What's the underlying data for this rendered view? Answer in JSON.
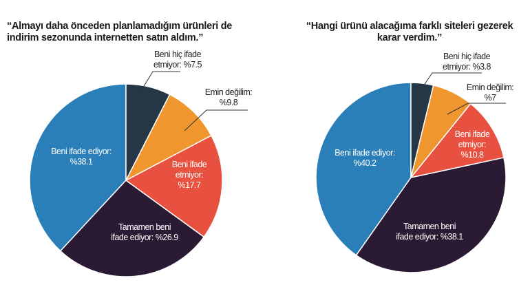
{
  "chart_data": [
    {
      "type": "pie",
      "title": "“Almayı daha önceden planlamadığım ürünleri de indirim sezonunda internetten satın aldım.”",
      "categories": [
        "Beni hiç ifade etmiyor:",
        "Emin değilim:",
        "Beni ifade etmiyor:",
        "Tamamen beni ifade ediyor:",
        "Beni ifade ediyor:"
      ],
      "values": [
        7.5,
        9.8,
        17.7,
        26.9,
        38.1
      ],
      "value_labels": [
        "%7.5",
        "%9.8",
        "%17.7",
        "%26.9",
        "%38.1"
      ],
      "colors": [
        "#253746",
        "#f0962e",
        "#e8503f",
        "#2b1a33",
        "#2a7fb8"
      ]
    },
    {
      "type": "pie",
      "title": "“Hangi ürünü alacağıma farklı siteleri gezerek karar verdim.”",
      "categories": [
        "Beni hiç ifade etmiyor:",
        "Emin değilim:",
        "Beni ifade etmiyor:",
        "Tamamen beni ifade ediyor:",
        "Beni ifade ediyor:"
      ],
      "values": [
        3.8,
        7,
        10.8,
        38.1,
        40.2
      ],
      "value_labels": [
        "%3.8",
        "%7",
        "%10.8",
        "%38.1",
        "%40.2"
      ],
      "colors": [
        "#253746",
        "#f0962e",
        "#e8503f",
        "#2b1a33",
        "#2a7fb8"
      ]
    }
  ]
}
